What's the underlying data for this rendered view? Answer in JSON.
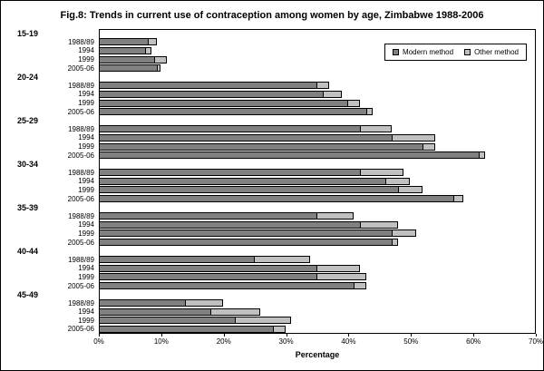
{
  "title": "Fig.8:  Trends in current use of contraception among women by age, Zimbabwe 1988-2006",
  "chart_data": {
    "type": "bar",
    "orientation": "horizontal",
    "stacked": true,
    "xlabel": "Percentage",
    "xlim": [
      0,
      70
    ],
    "x_ticks": [
      "0%",
      "10%",
      "20%",
      "30%",
      "40%",
      "50%",
      "60%",
      "70%"
    ],
    "grid": false,
    "legend": {
      "position": "top-right",
      "entries": [
        {
          "label": "Modern method",
          "color": "#808080"
        },
        {
          "label": "Other method",
          "color": "#c0c0c0"
        }
      ]
    },
    "groups": [
      {
        "age": "15-19",
        "bars": [
          {
            "year": "1988/89",
            "modern": 8,
            "other": 1.5
          },
          {
            "year": "1994",
            "modern": 7.5,
            "other": 1
          },
          {
            "year": "1999",
            "modern": 9,
            "other": 2
          },
          {
            "year": "2005-06",
            "modern": 9.5,
            "other": 0.5
          }
        ]
      },
      {
        "age": "20-24",
        "bars": [
          {
            "year": "1988/89",
            "modern": 35,
            "other": 2
          },
          {
            "year": "1994",
            "modern": 36,
            "other": 3
          },
          {
            "year": "1999",
            "modern": 40,
            "other": 2
          },
          {
            "year": "2005-06",
            "modern": 43,
            "other": 1
          }
        ]
      },
      {
        "age": "25-29",
        "bars": [
          {
            "year": "1988/89",
            "modern": 42,
            "other": 5
          },
          {
            "year": "1994",
            "modern": 47,
            "other": 7
          },
          {
            "year": "1999",
            "modern": 52,
            "other": 2
          },
          {
            "year": "2005-06",
            "modern": 61,
            "other": 1
          }
        ]
      },
      {
        "age": "30-34",
        "bars": [
          {
            "year": "1988/89",
            "modern": 42,
            "other": 7
          },
          {
            "year": "1994",
            "modern": 46,
            "other": 4
          },
          {
            "year": "1999",
            "modern": 48,
            "other": 4
          },
          {
            "year": "2005-06",
            "modern": 57,
            "other": 1.5
          }
        ]
      },
      {
        "age": "35-39",
        "bars": [
          {
            "year": "1988/89",
            "modern": 35,
            "other": 6
          },
          {
            "year": "1994",
            "modern": 42,
            "other": 6
          },
          {
            "year": "1999",
            "modern": 47,
            "other": 4
          },
          {
            "year": "2005-06",
            "modern": 47,
            "other": 1
          }
        ]
      },
      {
        "age": "40-44",
        "bars": [
          {
            "year": "1988/89",
            "modern": 25,
            "other": 9
          },
          {
            "year": "1994",
            "modern": 35,
            "other": 7
          },
          {
            "year": "1999",
            "modern": 35,
            "other": 8
          },
          {
            "year": "2005-06",
            "modern": 41,
            "other": 2
          }
        ]
      },
      {
        "age": "45-49",
        "bars": [
          {
            "year": "1988/89",
            "modern": 14,
            "other": 6
          },
          {
            "year": "1994",
            "modern": 18,
            "other": 8
          },
          {
            "year": "1999",
            "modern": 22,
            "other": 9
          },
          {
            "year": "2005-06",
            "modern": 28,
            "other": 2
          }
        ]
      }
    ]
  }
}
